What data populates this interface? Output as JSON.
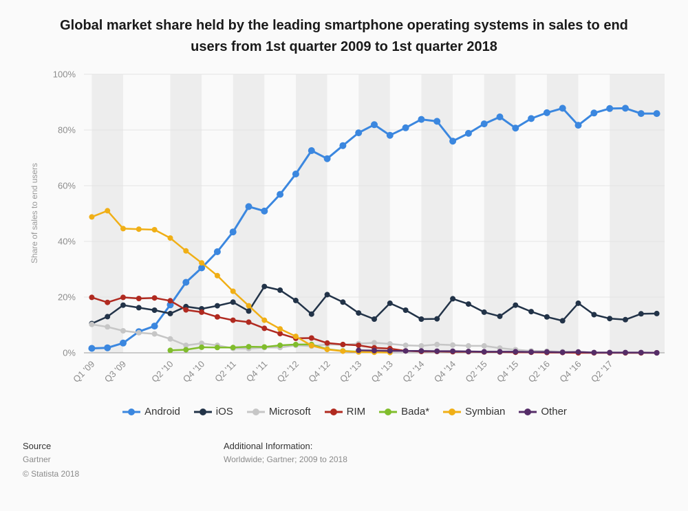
{
  "chart_data": {
    "type": "line",
    "title": "Global market share held by the leading smartphone operating systems in sales to end users from 1st quarter 2009 to 1st quarter 2018",
    "ylabel": "Share of sales to end users",
    "ylim": [
      0,
      100
    ],
    "grid": true,
    "legend_position": "bottom",
    "y_ticks": [
      "0%",
      "20%",
      "40%",
      "60%",
      "80%",
      "100%"
    ],
    "categories": [
      "Q1 '09",
      "Q2 '09",
      "Q3 '09",
      "Q4 '09",
      "Q1 '10",
      "Q2 '10",
      "Q3 '10",
      "Q4 '10",
      "Q1 '11",
      "Q2 '11",
      "Q3 '11",
      "Q4 '11",
      "Q1 '12",
      "Q2 '12",
      "Q3 '12",
      "Q4 '12",
      "Q1 '13",
      "Q2 '13",
      "Q3 '13",
      "Q4 '13",
      "Q1 '14",
      "Q2 '14",
      "Q3 '14",
      "Q4 '14",
      "Q1 '15",
      "Q2 '15",
      "Q3 '15",
      "Q4 '15",
      "Q1 '16",
      "Q2 '16",
      "Q3 '16",
      "Q4 '16",
      "Q1 '17",
      "Q2 '17",
      "Q3 '17",
      "Q4 '17",
      "Q1 '18"
    ],
    "x_tick_labels": [
      "Q1 '09",
      "Q3 '09",
      "Q2 '10",
      "Q4 '10",
      "Q2 '11",
      "Q4 '11",
      "Q2 '12",
      "Q4 '12",
      "Q2 '13",
      "Q4 '13",
      "Q2 '14",
      "Q4 '14",
      "Q2 '15",
      "Q4 '15",
      "Q2 '16",
      "Q4 '16",
      "Q2 '17"
    ],
    "series": [
      {
        "name": "Android",
        "color": "#3b87df",
        "values": [
          1.6,
          1.8,
          3.5,
          7.6,
          9.6,
          17.2,
          25.3,
          30.5,
          36.3,
          43.4,
          52.5,
          50.9,
          56.9,
          64.2,
          72.6,
          69.7,
          74.4,
          79.0,
          81.9,
          78.1,
          80.8,
          83.8,
          83.1,
          76.0,
          78.8,
          82.2,
          84.7,
          80.7,
          84.1,
          86.2,
          87.8,
          81.7,
          86.1,
          87.7,
          87.8,
          85.9,
          85.9
        ]
      },
      {
        "name": "iOS",
        "color": "#223348",
        "values": [
          10.5,
          13.0,
          17.1,
          16.2,
          15.3,
          14.1,
          16.6,
          15.8,
          16.9,
          18.2,
          15.0,
          23.8,
          22.5,
          18.8,
          13.9,
          20.9,
          18.2,
          14.3,
          12.1,
          17.8,
          15.3,
          12.1,
          12.2,
          19.4,
          17.5,
          14.6,
          13.1,
          17.1,
          14.8,
          12.9,
          11.5,
          17.8,
          13.7,
          12.3,
          11.9,
          14.0,
          14.1
        ]
      },
      {
        "name": "Microsoft",
        "color": "#c6c6c6",
        "values": [
          10.2,
          9.3,
          7.9,
          7.2,
          6.8,
          5.0,
          2.7,
          3.4,
          2.7,
          1.6,
          1.5,
          1.9,
          1.9,
          2.7,
          2.4,
          3.0,
          2.9,
          3.3,
          3.6,
          3.2,
          2.7,
          2.5,
          3.0,
          2.8,
          2.5,
          2.5,
          1.7,
          1.1,
          0.7,
          0.6,
          0.4,
          0.3,
          0.1,
          0.1,
          0.0,
          0.0,
          0.0
        ]
      },
      {
        "name": "RIM",
        "color": "#b02a20",
        "values": [
          19.9,
          18.1,
          19.9,
          19.5,
          19.7,
          18.7,
          15.4,
          14.6,
          12.9,
          11.7,
          11.0,
          8.8,
          6.9,
          5.2,
          5.3,
          3.5,
          3.0,
          2.7,
          1.8,
          1.5,
          0.7,
          0.5,
          0.5,
          0.4,
          0.4,
          0.3,
          0.3,
          0.2,
          0.2,
          0.1,
          0.1,
          0.0,
          0.0,
          0.0,
          0.0,
          0.0,
          0.0
        ]
      },
      {
        "name": "Bada*",
        "color": "#80bd2c",
        "values": [
          null,
          null,
          null,
          null,
          null,
          0.9,
          1.1,
          2.0,
          1.9,
          1.9,
          2.2,
          2.1,
          2.7,
          3.0,
          3.0,
          1.3,
          0.7,
          0.4,
          null,
          null,
          null,
          null,
          null,
          null,
          null,
          null,
          null,
          null,
          null,
          null,
          null,
          null,
          null,
          null,
          null,
          null,
          null
        ]
      },
      {
        "name": "Symbian",
        "color": "#f0af16",
        "values": [
          48.8,
          51.0,
          44.6,
          44.4,
          44.2,
          41.2,
          36.6,
          32.3,
          27.7,
          22.1,
          16.9,
          11.7,
          8.6,
          5.9,
          2.6,
          1.2,
          0.6,
          0.3,
          0.2,
          0.1,
          null,
          null,
          null,
          null,
          null,
          null,
          null,
          null,
          null,
          null,
          null,
          null,
          null,
          null,
          null,
          null,
          null
        ]
      },
      {
        "name": "Other",
        "color": "#552d68",
        "values": [
          null,
          null,
          null,
          null,
          null,
          null,
          null,
          null,
          null,
          null,
          null,
          null,
          null,
          null,
          null,
          null,
          null,
          0.9,
          0.8,
          0.7,
          0.7,
          0.7,
          0.6,
          0.6,
          0.5,
          0.4,
          0.4,
          0.4,
          0.3,
          0.3,
          0.2,
          0.3,
          0.1,
          0.1,
          0.1,
          0.1,
          0.0
        ]
      }
    ]
  },
  "footer": {
    "source_label": "Source",
    "source_value": "Gartner",
    "copyright": "© Statista 2018",
    "additional_label": "Additional Information:",
    "additional_value": "Worldwide; Gartner; 2009 to 2018"
  }
}
